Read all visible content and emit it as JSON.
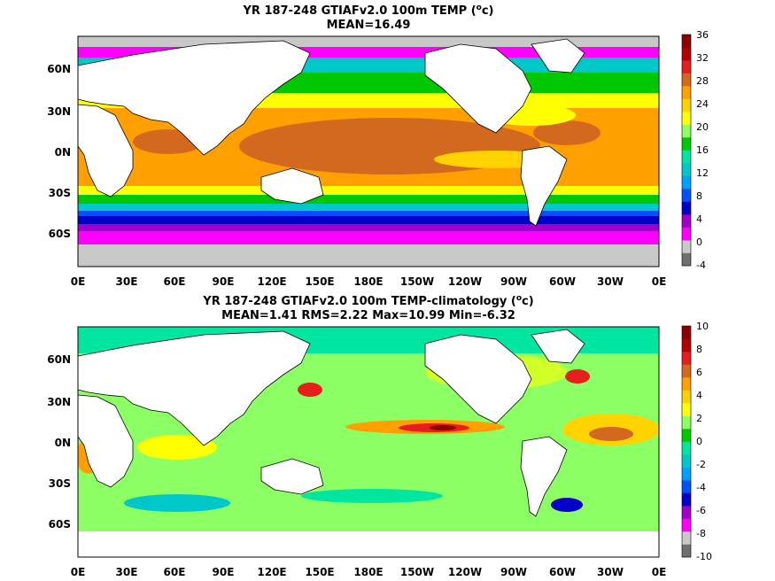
{
  "panels": [
    {
      "title_line1": "YR 187-248 GTIAFv2.0 100m TEMP (",
      "title_unit_sup": "o",
      "title_unit_end": "c)",
      "title_line2": "MEAN=16.49",
      "lat_labels": [
        "60N",
        "30N",
        "0N",
        "30S",
        "60S"
      ],
      "lon_labels": [
        "0E",
        "30E",
        "60E",
        "90E",
        "120E",
        "150E",
        "180E",
        "150W",
        "120W",
        "90W",
        "60W",
        "30W",
        "0E"
      ],
      "colorbar_labels": [
        "36",
        "32",
        "28",
        "24",
        "20",
        "16",
        "12",
        "8",
        "4",
        "0",
        "-4"
      ],
      "colorbar_colors": [
        "#6e6e6e",
        "#c8c8c8",
        "#ff00ff",
        "#a000c8",
        "#0000c8",
        "#0050ff",
        "#00a0ff",
        "#00c8c8",
        "#00e6a0",
        "#00c800",
        "#8cff64",
        "#ffff00",
        "#ffd200",
        "#ffa000",
        "#d2691e",
        "#e61e1e",
        "#b40000",
        "#8c0000"
      ]
    },
    {
      "title_line1": "YR 187-248 GTIAFv2.0 100m TEMP-climatology (",
      "title_unit_sup": "o",
      "title_unit_end": "c)",
      "title_line2": "MEAN=1.41   RMS=2.22   Max=10.99   Min=-6.32",
      "lat_labels": [
        "60N",
        "30N",
        "0N",
        "30S",
        "60S"
      ],
      "lon_labels": [
        "0E",
        "30E",
        "60E",
        "90E",
        "120E",
        "150E",
        "180E",
        "150W",
        "120W",
        "90W",
        "60W",
        "30W",
        "0E"
      ],
      "colorbar_labels": [
        "10",
        "8",
        "6",
        "4",
        "2",
        "0",
        "-2",
        "-4",
        "-6",
        "-8",
        "-10"
      ],
      "colorbar_colors": [
        "#6e6e6e",
        "#c8c8c8",
        "#ff00ff",
        "#a000c8",
        "#0000c8",
        "#0050ff",
        "#00a0ff",
        "#00c8c8",
        "#00e6a0",
        "#00c800",
        "#8cff64",
        "#ffff00",
        "#ffd200",
        "#ffa000",
        "#d2691e",
        "#e61e1e",
        "#b40000",
        "#8c0000"
      ]
    }
  ],
  "land_color": "#ffffff",
  "missing_color": "#c8c8c8"
}
